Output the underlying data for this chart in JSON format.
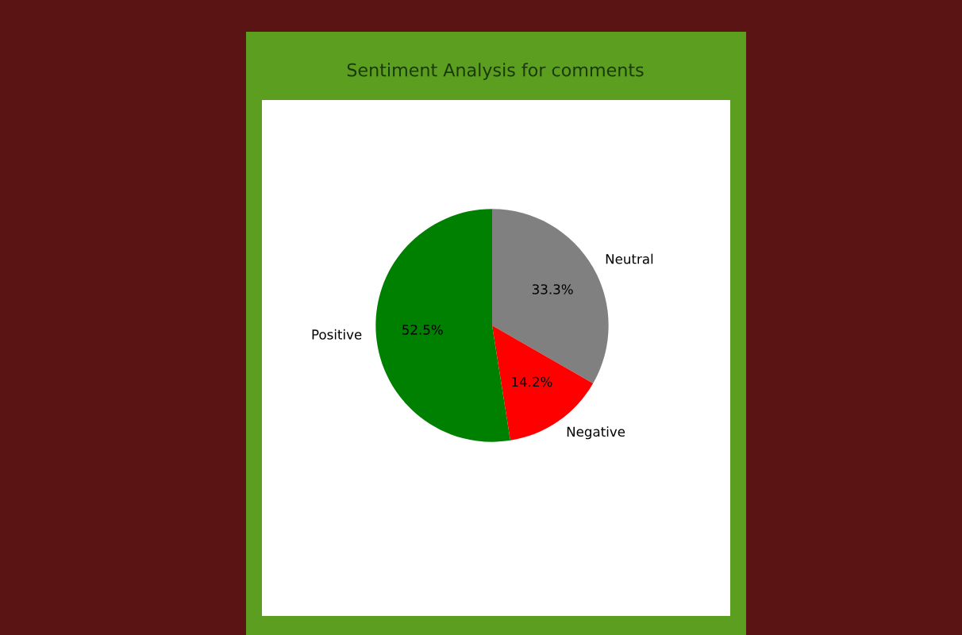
{
  "chart_data": {
    "type": "pie",
    "title": "Sentiment Analysis for comments",
    "categories": [
      "Neutral",
      "Negative",
      "Positive"
    ],
    "values": [
      33.3,
      14.2,
      52.5
    ],
    "value_labels": [
      "33.3%",
      "14.2%",
      "52.5%"
    ],
    "colors": [
      "#808080",
      "#ff0000",
      "#008000"
    ]
  }
}
